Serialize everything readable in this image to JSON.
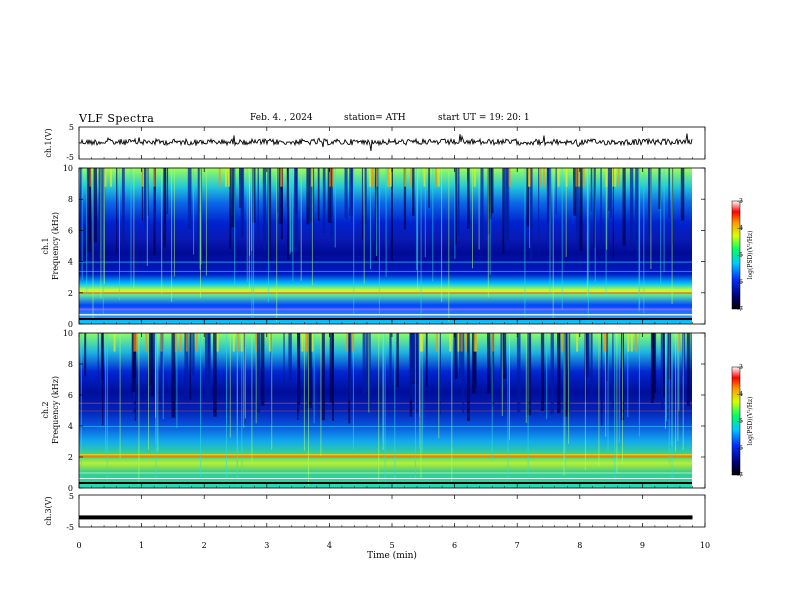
{
  "header": {
    "title": "VLF  Spectra",
    "date": "Feb. 4.  , 2024",
    "station": "station= ATH",
    "start": "start  UT  =   19: 20: 1"
  },
  "chart_data": [
    {
      "type": "line",
      "ylabel": "ch.1(V)",
      "xlim": [
        0,
        10
      ],
      "ylim": [
        -5,
        5
      ],
      "yticks": [
        "5",
        "-5"
      ],
      "description_values": {
        "x_end_min": 9.8,
        "mean_v": 0.3,
        "amplitude_v": 0.5
      }
    },
    {
      "type": "heatmap",
      "ylabel": "Frequency (kHz)",
      "channel_label": "ch.1",
      "xlim": [
        0,
        10
      ],
      "ylim": [
        0,
        10
      ],
      "yticks": [
        "0",
        "2",
        "4",
        "6",
        "8",
        "10"
      ],
      "colorbar": {
        "label": "log(PSD)(V²/Hz)",
        "ticks": [
          "-3",
          "-4",
          "-5",
          "-6",
          "-7"
        ],
        "range": [
          -7,
          -3
        ]
      }
    },
    {
      "type": "heatmap",
      "ylabel": "Frequency (kHz)",
      "channel_label": "ch.2",
      "xlim": [
        0,
        10
      ],
      "ylim": [
        0,
        10
      ],
      "yticks": [
        "0",
        "2",
        "4",
        "6",
        "8",
        "10"
      ],
      "colorbar": {
        "label": "log(PSD)(V²/Hz)",
        "ticks": [
          "-3",
          "-4",
          "-5",
          "-6",
          "-7"
        ],
        "range": [
          -7,
          -3
        ]
      }
    },
    {
      "type": "line",
      "ylabel": "ch.3(V)",
      "xlim": [
        0,
        10
      ],
      "ylim": [
        -5,
        5
      ],
      "yticks": [
        "5",
        "-5"
      ],
      "description_values": {
        "x_end_min": 9.8,
        "mean_v": -2.0,
        "amplitude_v": 0.0
      }
    }
  ],
  "xaxis": {
    "label": "Time  (min)",
    "ticks": [
      "0",
      "1",
      "2",
      "3",
      "4",
      "5",
      "6",
      "7",
      "8",
      "9",
      "10"
    ]
  }
}
